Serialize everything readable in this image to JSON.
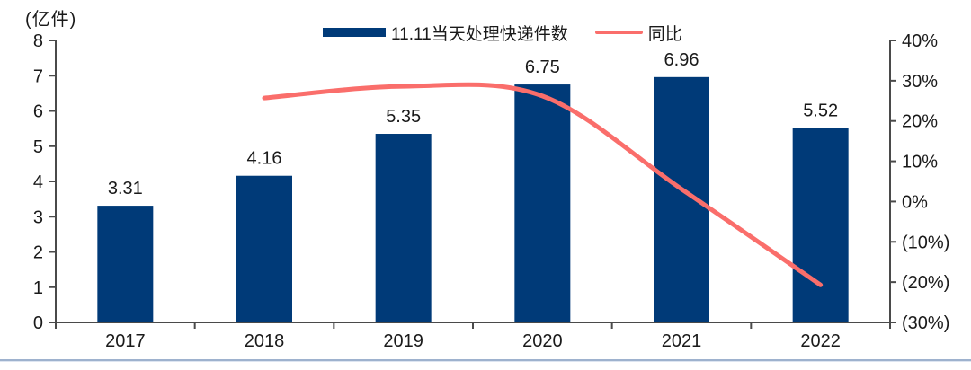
{
  "styles": {
    "bar_color": "#003a78",
    "line_color": "#fa6e6b",
    "axis_color": "#4a4a4a",
    "text_color": "#1a1a1a",
    "footer_line_color": "#9eb2ce"
  },
  "chart_data": {
    "type": "combo",
    "title": "",
    "categories": [
      "2017",
      "2018",
      "2019",
      "2020",
      "2021",
      "2022"
    ],
    "series": [
      {
        "name": "11.11当天处理快递件数",
        "type": "bar",
        "axis": "left",
        "values": [
          3.31,
          4.16,
          5.35,
          6.75,
          6.96,
          5.52
        ],
        "data_labels": [
          "3.31",
          "4.16",
          "5.35",
          "6.75",
          "6.96",
          "5.52"
        ]
      },
      {
        "name": "同比",
        "type": "line",
        "axis": "right",
        "values_pct": [
          null,
          25.7,
          28.6,
          26.2,
          3.1,
          -20.7
        ]
      }
    ],
    "left_axis": {
      "unit": "(亿件)",
      "min": 0,
      "max": 8,
      "ticks": [
        "8",
        "7",
        "6",
        "5",
        "4",
        "3",
        "2",
        "1",
        "0"
      ],
      "tick_values": [
        8,
        7,
        6,
        5,
        4,
        3,
        2,
        1,
        0
      ]
    },
    "right_axis": {
      "min": -30,
      "max": 40,
      "ticks": [
        "40%",
        "30%",
        "20%",
        "10%",
        "0%",
        "(10%)",
        "(20%)",
        "(30%)"
      ],
      "tick_values": [
        40,
        30,
        20,
        10,
        0,
        -10,
        -20,
        -30
      ]
    },
    "grid": false,
    "legend_position": "top-center"
  }
}
